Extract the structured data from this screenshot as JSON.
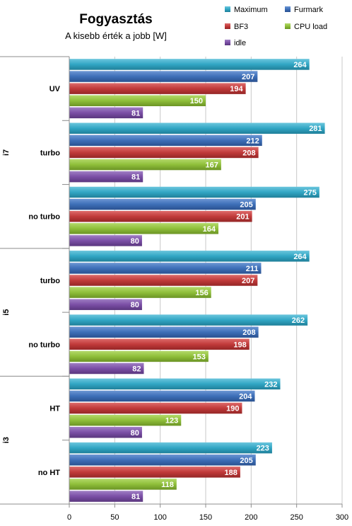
{
  "chart_data": {
    "type": "bar",
    "orientation": "horizontal",
    "title": "Fogyasztás",
    "subtitle": "A kisebb érték a jobb [W]",
    "xlim": [
      0,
      300
    ],
    "xticks": [
      0,
      50,
      100,
      150,
      200,
      250,
      300
    ],
    "grid": true,
    "legend_position": "top-right",
    "series_meta": [
      {
        "name": "Maximum",
        "color": "#31a6c4"
      },
      {
        "name": "Furmark",
        "color": "#3d6fb8"
      },
      {
        "name": "BF3",
        "color": "#c13a3a"
      },
      {
        "name": "CPU load",
        "color": "#8fbf3a"
      },
      {
        "name": "idle",
        "color": "#7b4fa6"
      }
    ],
    "groups": [
      {
        "name": "i7",
        "categories": [
          {
            "label": "UV",
            "values": [
              264,
              207,
              194,
              150,
              81
            ]
          },
          {
            "label": "turbo",
            "values": [
              281,
              212,
              208,
              167,
              81
            ]
          },
          {
            "label": "no turbo",
            "values": [
              275,
              205,
              201,
              164,
              80
            ]
          }
        ]
      },
      {
        "name": "i5",
        "categories": [
          {
            "label": "turbo",
            "values": [
              264,
              211,
              207,
              156,
              80
            ]
          },
          {
            "label": "no turbo",
            "values": [
              262,
              208,
              198,
              153,
              82
            ]
          }
        ]
      },
      {
        "name": "i3",
        "categories": [
          {
            "label": "HT",
            "values": [
              232,
              204,
              190,
              123,
              80
            ]
          },
          {
            "label": "no HT",
            "values": [
              223,
              205,
              188,
              118,
              81
            ]
          }
        ]
      }
    ]
  }
}
